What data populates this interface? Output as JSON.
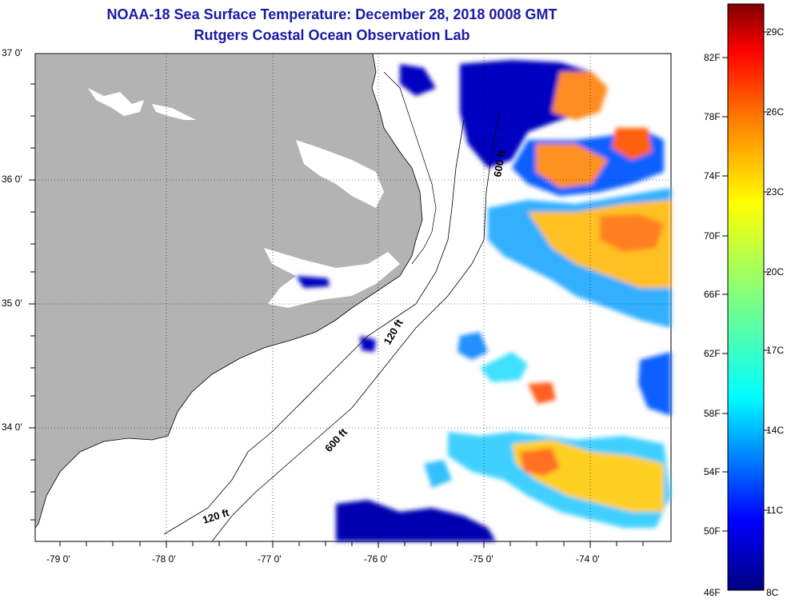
{
  "title": "NOAA-18 Sea Surface Temperature:  December 28, 2018 0008 GMT",
  "subtitle": "Rutgers Coastal Ocean Observation Lab",
  "lat_labels": [
    "37 0'",
    "36 0'",
    "35 0'",
    "34 0'"
  ],
  "lon_labels": [
    "-79 0'",
    "-78 0'",
    "-77 0'",
    "-76 0'",
    "-75 0'",
    "-74 0'"
  ],
  "contours": {
    "c600_north": "600 ft",
    "c120_mid": "120 ft",
    "c600_south": "600 ft",
    "c120_south": "120 ft"
  },
  "colorbar": {
    "fahrenheit": [
      "82F",
      "78F",
      "74F",
      "70F",
      "66F",
      "62F",
      "58F",
      "54F",
      "50F",
      "46F"
    ],
    "celsius": [
      "29C",
      "26C",
      "23C",
      "20C",
      "17C",
      "14C",
      "11C",
      "8C"
    ],
    "colors": [
      "#800000",
      "#ff0000",
      "#ff8000",
      "#ffff00",
      "#80ff80",
      "#00ffff",
      "#0080ff",
      "#0000ff",
      "#000080"
    ]
  },
  "colors": {
    "land": "#b3b3b3",
    "title": "#1a1aa6"
  }
}
